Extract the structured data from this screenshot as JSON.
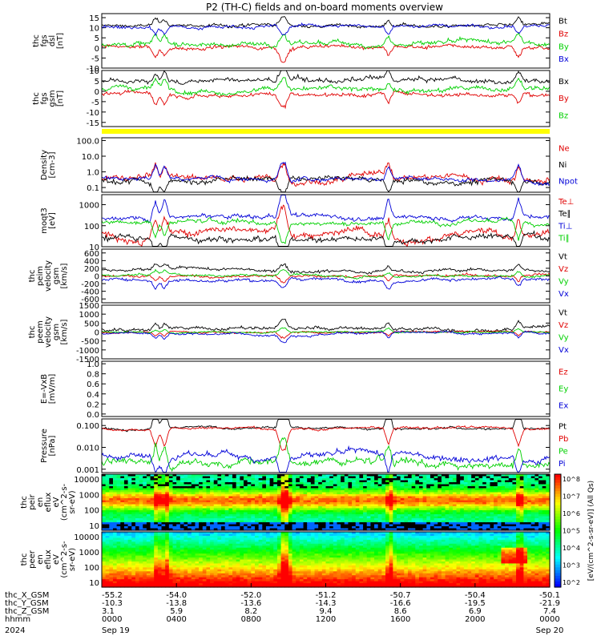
{
  "title": "P2 (TH-C) fields and on-board moments overview",
  "colors": {
    "black": "#000000",
    "red": "#e00000",
    "green": "#00d000",
    "blue": "#0000d8",
    "yellow": "#ffff00"
  },
  "chart_data": [
    {
      "type": "line",
      "panel_id": "fgs_dsl",
      "ylabel": [
        "thc",
        "fgs",
        "dsl",
        "[nT]"
      ],
      "ylim": [
        -10,
        17
      ],
      "ytick_labels": [
        "15",
        "10",
        "5",
        "0",
        "-5",
        "-10"
      ],
      "ytick_values": [
        15,
        10,
        5,
        0,
        -5,
        -10
      ],
      "series": [
        {
          "name": "Bt",
          "color": "#000000",
          "base": 11,
          "noise": 1.0
        },
        {
          "name": "Bz",
          "color": "#e00000",
          "base": 0.5,
          "noise": 1.2
        },
        {
          "name": "By",
          "color": "#00d000",
          "base": 2,
          "noise": 1.5
        },
        {
          "name": "Bx",
          "color": "#0000d8",
          "base": 11,
          "noise": 1.0
        }
      ]
    },
    {
      "type": "line",
      "panel_id": "fgs_gsm",
      "ylabel": [
        "thc",
        "fgs",
        "gsm",
        "[nT]"
      ],
      "ylim": [
        -17,
        10
      ],
      "ytick_labels": [
        "10",
        "5",
        "0",
        "-5",
        "-10",
        "-15"
      ],
      "ytick_values": [
        10,
        5,
        0,
        -5,
        -10,
        -15
      ],
      "series": [
        {
          "name": "Bx",
          "color": "#000000",
          "base": 5,
          "noise": 1.5
        },
        {
          "name": "By",
          "color": "#e00000",
          "base": -1,
          "noise": 1.2
        },
        {
          "name": "Bz",
          "color": "#00d000",
          "base": 1,
          "noise": 1.5
        }
      ]
    },
    {
      "type": "line",
      "panel_id": "density",
      "ylabel": [
        "Density",
        "[cm-3]"
      ],
      "scale": "log",
      "ylim": [
        0.05,
        150
      ],
      "ytick_labels": [
        "100.0",
        "10.0",
        "1.0",
        "0.1"
      ],
      "ytick_values": [
        100,
        10,
        1,
        0.1
      ],
      "series": [
        {
          "name": "Ne",
          "color": "#e00000",
          "base": 0.4,
          "noise": 0.6
        },
        {
          "name": "Ni",
          "color": "#000000",
          "base": 0.3,
          "noise": 0.5
        },
        {
          "name": "Npot",
          "color": "#0000d8",
          "base": 0.35,
          "noise": 0.4
        }
      ]
    },
    {
      "type": "line",
      "panel_id": "temperature",
      "ylabel": [
        "moqt3",
        "[eV]"
      ],
      "scale": "log",
      "ylim": [
        10,
        3000
      ],
      "ytick_labels": [
        "1000",
        "100",
        "10"
      ],
      "ytick_values": [
        1000,
        100,
        10
      ],
      "series": [
        {
          "name": "Te⊥",
          "color": "#e00000",
          "base": 40,
          "noise": 0.5
        },
        {
          "name": "Te∥",
          "color": "#000000",
          "base": 30,
          "noise": 0.4
        },
        {
          "name": "Ti⊥",
          "color": "#0000d8",
          "base": 250,
          "noise": 0.3
        },
        {
          "name": "Ti∥",
          "color": "#00d000",
          "base": 150,
          "noise": 0.3
        }
      ]
    },
    {
      "type": "line",
      "panel_id": "peim_velocity",
      "ylabel": [
        "thc",
        "peim",
        "velocity",
        "gsm",
        "[km/s]"
      ],
      "ylim": [
        -700,
        700
      ],
      "ytick_labels": [
        "600",
        "400",
        "200",
        "0",
        "-200",
        "-400",
        "-600"
      ],
      "ytick_values": [
        600,
        400,
        200,
        0,
        -200,
        -400,
        -600
      ],
      "series": [
        {
          "name": "Vt",
          "color": "#000000",
          "base": 150,
          "noise": 50
        },
        {
          "name": "Vz",
          "color": "#e00000",
          "base": 0,
          "noise": 40
        },
        {
          "name": "Vy",
          "color": "#00d000",
          "base": 20,
          "noise": 40
        },
        {
          "name": "Vx",
          "color": "#0000d8",
          "base": -90,
          "noise": 50
        }
      ]
    },
    {
      "type": "line",
      "panel_id": "peem_velocity",
      "ylabel": [
        "thc",
        "peem",
        "velocity",
        "gsm",
        "[km/s]"
      ],
      "ylim": [
        -1500,
        1500
      ],
      "ytick_labels": [
        "1500",
        "1000",
        "500",
        "0",
        "-500",
        "-1000",
        "-1500"
      ],
      "ytick_values": [
        1500,
        1000,
        500,
        0,
        -500,
        -1000,
        -1500
      ],
      "series": [
        {
          "name": "Vt",
          "color": "#000000",
          "base": 180,
          "noise": 120
        },
        {
          "name": "Vz",
          "color": "#e00000",
          "base": 0,
          "noise": 60
        },
        {
          "name": "Vy",
          "color": "#00d000",
          "base": 0,
          "noise": 60
        },
        {
          "name": "Vx",
          "color": "#0000d8",
          "base": -80,
          "noise": 80
        }
      ]
    },
    {
      "type": "line",
      "panel_id": "efield",
      "ylabel": [
        "E=-VxB",
        "[mV/m]"
      ],
      "ylim": [
        -0.05,
        1.05
      ],
      "ytick_labels": [
        "1.0",
        "0.8",
        "0.6",
        "0.4",
        "0.2",
        "0.0"
      ],
      "ytick_values": [
        1.0,
        0.8,
        0.6,
        0.4,
        0.2,
        0.0
      ],
      "series": [
        {
          "name": "Ez",
          "color": "#e00000"
        },
        {
          "name": "Ey",
          "color": "#00d000"
        },
        {
          "name": "Ex",
          "color": "#0000d8"
        }
      ]
    },
    {
      "type": "line",
      "panel_id": "pressure",
      "ylabel": [
        "Pressure",
        "[nPa]"
      ],
      "scale": "log",
      "ylim": [
        0.0007,
        0.2
      ],
      "ytick_labels": [
        "0.100",
        "0.010",
        "0.001"
      ],
      "ytick_values": [
        0.1,
        0.01,
        0.001
      ],
      "series": [
        {
          "name": "Pt",
          "color": "#000000",
          "base": 0.08,
          "noise": 0.15
        },
        {
          "name": "Pb",
          "color": "#e00000",
          "base": 0.075,
          "noise": 0.15
        },
        {
          "name": "Pe",
          "color": "#00d000",
          "base": 0.002,
          "noise": 0.5
        },
        {
          "name": "Pi",
          "color": "#0000d8",
          "base": 0.004,
          "noise": 0.4
        }
      ]
    },
    {
      "type": "heatmap",
      "panel_id": "peir_spectrogram",
      "ylabel": [
        "thc",
        "peir",
        "en",
        "eflux",
        "eV",
        "(cm^2-s-",
        "sr-eV)"
      ],
      "scale": "log",
      "ylim": [
        5,
        20000
      ],
      "ytick_labels": [
        "10000",
        "1000",
        "100",
        "10"
      ],
      "ytick_values": [
        10000,
        1000,
        100,
        10
      ]
    },
    {
      "type": "heatmap",
      "panel_id": "peer_spectrogram",
      "ylabel": [
        "thc",
        "peer",
        "en",
        "eflux",
        "eV",
        "(cm^2-s-",
        "sr-eV)"
      ],
      "scale": "log",
      "ylim": [
        5,
        20000
      ],
      "ytick_labels": [
        "10000",
        "1000",
        "100",
        "10"
      ],
      "ytick_values": [
        10000,
        1000,
        100,
        10
      ]
    }
  ],
  "colorbar": {
    "label": "[eV/(cm^2-s-sr-eV)] (All Qs)",
    "tick_labels": [
      "10^8",
      "10^7",
      "10^6",
      "10^5",
      "10^4",
      "10^3",
      "10^2"
    ]
  },
  "xaxis": {
    "tick_labels": [
      "0000",
      "0400",
      "0800",
      "1200",
      "1600",
      "2000",
      "0000"
    ],
    "rows": [
      {
        "label": "thc_X_GSM",
        "values": [
          "-55.2",
          "-54.0",
          "-52.0",
          "-51.2",
          "-50.7",
          "-50.4",
          "-50.1"
        ]
      },
      {
        "label": "thc_Y_GSM",
        "values": [
          "-10.3",
          "-13.8",
          "-13.6",
          "-14.3",
          "-16.6",
          "-19.5",
          "-21.9"
        ]
      },
      {
        "label": "thc_Z_GSM",
        "values": [
          "3.1",
          "5.9",
          "8.2",
          "9.4",
          "8.6",
          "6.9",
          "7.4"
        ]
      },
      {
        "label": "hhmm",
        "values": [
          "0000",
          "0400",
          "0800",
          "1200",
          "1600",
          "2000",
          "0000"
        ]
      }
    ],
    "year": "2024",
    "start_date": "Sep 19",
    "end_date": "Sep 20"
  }
}
